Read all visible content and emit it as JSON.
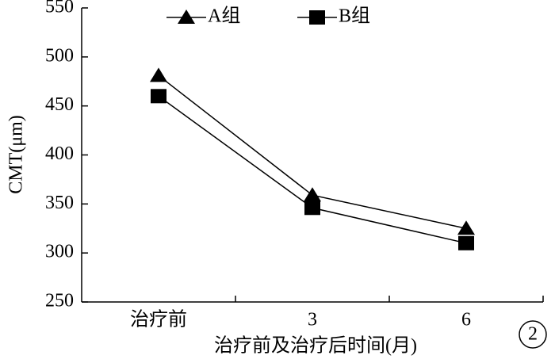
{
  "chart_data": {
    "type": "line",
    "categories": [
      "治疗前",
      "3",
      "6"
    ],
    "series": [
      {
        "name": "A组",
        "color": "#000000",
        "marker": "triangle",
        "values": [
          481,
          359,
          325
        ]
      },
      {
        "name": "B组",
        "color": "#000000",
        "marker": "square",
        "values": [
          460,
          346,
          310
        ]
      }
    ],
    "y_label": "CMT(μm)",
    "x_label": "治疗前及治疗后时间(月)",
    "annotation": "2",
    "ylim": [
      250,
      550
    ],
    "yticks": [
      250,
      300,
      350,
      400,
      450,
      500,
      550
    ],
    "grid": false,
    "legend": "top"
  }
}
